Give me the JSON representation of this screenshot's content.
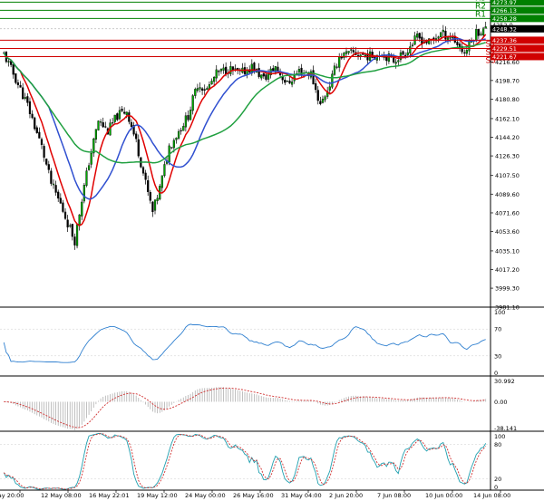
{
  "chart_data": {
    "type": "candlestick",
    "price_axis": {
      "ylim": [
        3981.1,
        4276.0
      ],
      "ticks": [
        "4216.60",
        "4198.70",
        "4180.80",
        "4162.10",
        "4144.20",
        "4126.30",
        "4107.50",
        "4089.60",
        "4071.60",
        "4053.60",
        "4035.10",
        "4017.20",
        "3999.30",
        "3981.10"
      ]
    },
    "x_labels": [
      "9 May 20:00",
      "12 May 08:00",
      "16 May 22:01",
      "19 May 12:00",
      "24 May 00:00",
      "26 May 16:00",
      "31 May 04:00",
      "2 Jun 20:00",
      "7 Jun 08:00",
      "10 Jun 00:00",
      "14 Jun 08:00"
    ],
    "levels": {
      "resistance": [
        {
          "name": "R3",
          "value": 4273.97,
          "label": "4273.97"
        },
        {
          "name": "R2",
          "value": 4266.13,
          "label": "4266.13"
        },
        {
          "name": "R1",
          "value": 4258.28,
          "label": "4258.28"
        }
      ],
      "support": [
        {
          "name": "S1",
          "value": 4237.36,
          "label": "4237.36"
        },
        {
          "name": "S2",
          "value": 4229.51,
          "label": "4229.51"
        },
        {
          "name": "S3",
          "value": 4221.67,
          "label": "4221.67"
        }
      ],
      "current": {
        "value": 4248.32,
        "label": "4248.32"
      },
      "prev": {
        "value": 4252.0,
        "label": "4252.0"
      }
    },
    "colors": {
      "bull": "#00aa00",
      "bear": "#000000",
      "ma_fast": "#e00000",
      "ma_mid": "#3050d0",
      "ma_slow": "#20a040",
      "resistance": "#008000",
      "support": "#d00000",
      "rsi": "#3080d0",
      "macd_hist": "#b0b0b0",
      "macd_signal": "#d03030",
      "stoch_k": "#20a0b0",
      "stoch_d": "#d03030"
    },
    "rsi_panel": {
      "ticks": [
        "100",
        "70",
        "30",
        "0"
      ],
      "range": [
        0,
        100
      ]
    },
    "macd_panel": {
      "ticks": [
        "30.992",
        "0.00",
        "-38.141"
      ],
      "range": [
        -38.141,
        30.992
      ]
    },
    "stoch_panel": {
      "ticks": [
        "100",
        "80",
        "20",
        "0"
      ],
      "range": [
        0,
        100
      ]
    }
  }
}
